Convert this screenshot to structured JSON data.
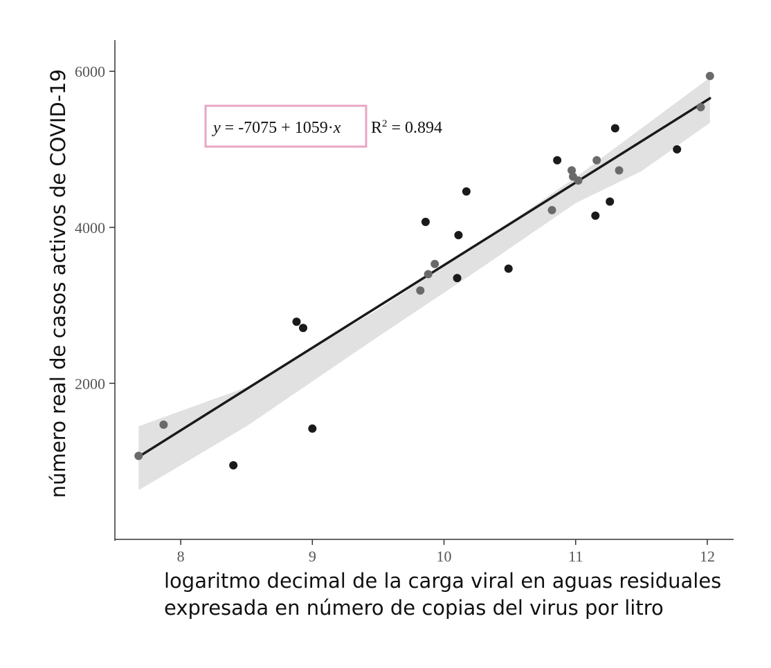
{
  "chart_data": {
    "type": "scatter",
    "title": "",
    "xlabel": [
      "logaritmo decimal de la carga viral en aguas residuales",
      "expresada en número de copias del virus por litro"
    ],
    "ylabel": "número real de casos activos de COVID-19",
    "xlim": [
      7.5,
      12.2
    ],
    "ylim": [
      0,
      6400
    ],
    "x_ticks": [
      "8",
      "9",
      "10",
      "11",
      "12"
    ],
    "y_ticks": [
      "2000",
      "4000",
      "6000"
    ],
    "grid": false,
    "equation": {
      "y_var": "y",
      "formula_middle": " = -7075 + 1059·",
      "x_var": "x",
      "r2_base": "R",
      "r2_sup": "2",
      "r2_value": " = 0.894",
      "highlight_color": "#e9a6c4"
    },
    "regression": {
      "intercept": -7075,
      "slope": 1059,
      "x_start": 7.68,
      "x_end": 12.02
    },
    "confidence_band": [
      {
        "x": 7.68,
        "upper": 1450,
        "lower": 630
      },
      {
        "x": 8.5,
        "upper": 1950,
        "lower": 1450
      },
      {
        "x": 9.5,
        "upper": 2950,
        "lower": 2600
      },
      {
        "x": 10.3,
        "upper": 3830,
        "lower": 3500
      },
      {
        "x": 11.0,
        "upper": 4640,
        "lower": 4310
      },
      {
        "x": 11.5,
        "upper": 5270,
        "lower": 4720
      },
      {
        "x": 12.02,
        "upper": 5920,
        "lower": 5340
      }
    ],
    "series": [
      {
        "color": "#1a1a1a",
        "points": [
          {
            "x": 8.4,
            "y": 950
          },
          {
            "x": 8.88,
            "y": 2790
          },
          {
            "x": 8.93,
            "y": 2710
          },
          {
            "x": 9.0,
            "y": 1420
          },
          {
            "x": 9.86,
            "y": 4070
          },
          {
            "x": 10.1,
            "y": 3350
          },
          {
            "x": 10.11,
            "y": 3900
          },
          {
            "x": 10.17,
            "y": 4460
          },
          {
            "x": 10.49,
            "y": 3470
          },
          {
            "x": 10.86,
            "y": 4860
          },
          {
            "x": 11.15,
            "y": 4150
          },
          {
            "x": 11.26,
            "y": 4330
          },
          {
            "x": 11.3,
            "y": 5270
          },
          {
            "x": 11.77,
            "y": 5000
          }
        ]
      },
      {
        "color": "#6a6a6a",
        "points": [
          {
            "x": 7.68,
            "y": 1070
          },
          {
            "x": 7.87,
            "y": 1470
          },
          {
            "x": 9.82,
            "y": 3190
          },
          {
            "x": 9.88,
            "y": 3400
          },
          {
            "x": 9.93,
            "y": 3530
          },
          {
            "x": 10.82,
            "y": 4220
          },
          {
            "x": 10.97,
            "y": 4730
          },
          {
            "x": 10.98,
            "y": 4650
          },
          {
            "x": 11.02,
            "y": 4600
          },
          {
            "x": 11.16,
            "y": 4860
          },
          {
            "x": 11.33,
            "y": 4730
          },
          {
            "x": 11.95,
            "y": 5540
          },
          {
            "x": 12.02,
            "y": 5940
          }
        ]
      }
    ]
  }
}
